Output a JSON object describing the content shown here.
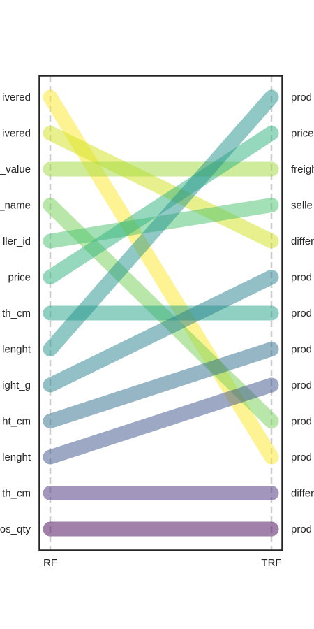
{
  "chart_data": {
    "type": "slope",
    "categories": [
      "RF",
      "TRF"
    ],
    "left_labels": [
      "ivered",
      "ivered",
      "_value",
      "_name",
      "ller_id",
      "price",
      "th_cm",
      "lenght",
      "ight_g",
      "ht_cm",
      "lenght",
      "th_cm",
      "os_qty"
    ],
    "right_labels": [
      "prod",
      "price",
      "freigh",
      "selle",
      "differ",
      "prod",
      "prod",
      "prod",
      "prod",
      "prod",
      "prod",
      "differ",
      "prod"
    ],
    "series": [
      {
        "from": 1,
        "to": 11,
        "color": "#fde725"
      },
      {
        "from": 2,
        "to": 5,
        "color": "#d0e11c"
      },
      {
        "from": 3,
        "to": 3,
        "color": "#a0da39"
      },
      {
        "from": 4,
        "to": 10,
        "color": "#73d056"
      },
      {
        "from": 5,
        "to": 4,
        "color": "#4ac16d"
      },
      {
        "from": 6,
        "to": 2,
        "color": "#2db27d"
      },
      {
        "from": 7,
        "to": 7,
        "color": "#1fa187"
      },
      {
        "from": 8,
        "to": 1,
        "color": "#21918c"
      },
      {
        "from": 9,
        "to": 6,
        "color": "#277f8e"
      },
      {
        "from": 10,
        "to": 8,
        "color": "#2e6e8e"
      },
      {
        "from": 11,
        "to": 9,
        "color": "#3b528b"
      },
      {
        "from": 12,
        "to": 12,
        "color": "#472d7b"
      },
      {
        "from": 13,
        "to": 13,
        "color": "#440154"
      }
    ],
    "line_opacity": 0.5,
    "grid": true
  }
}
